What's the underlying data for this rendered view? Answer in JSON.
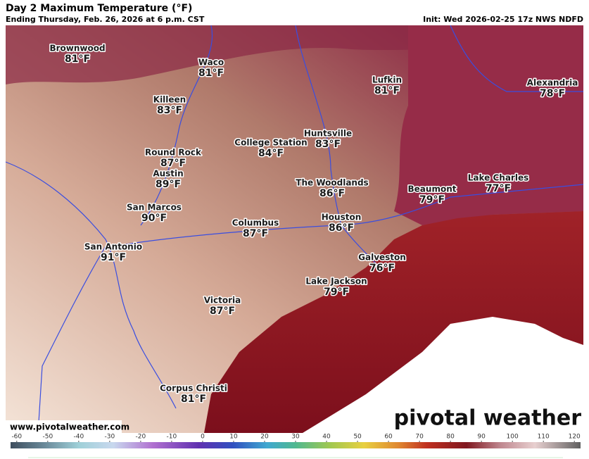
{
  "header": {
    "title": "Day 2 Maximum Temperature (°F)",
    "subtitle": "Ending Thursday, Feb. 26, 2026 at 6 p.m. CST",
    "init": "Init: Wed 2026-02-25 17z NWS NDFD"
  },
  "cities": [
    {
      "name": "Brownwood",
      "temp": "81°F"
    },
    {
      "name": "Waco",
      "temp": "81°F"
    },
    {
      "name": "Killeen",
      "temp": "83°F"
    },
    {
      "name": "Lufkin",
      "temp": "81°F"
    },
    {
      "name": "Alexandria",
      "temp": "78°F"
    },
    {
      "name": "College Station",
      "temp": "84°F"
    },
    {
      "name": "Huntsville",
      "temp": "83°F"
    },
    {
      "name": "Round Rock",
      "temp": "87°F"
    },
    {
      "name": "Austin",
      "temp": "89°F"
    },
    {
      "name": "The Woodlands",
      "temp": "86°F"
    },
    {
      "name": "Beaumont",
      "temp": "79°F"
    },
    {
      "name": "Lake Charles",
      "temp": "77°F"
    },
    {
      "name": "San Marcos",
      "temp": "90°F"
    },
    {
      "name": "Houston",
      "temp": "86°F"
    },
    {
      "name": "Columbus",
      "temp": "87°F"
    },
    {
      "name": "San Antonio",
      "temp": "91°F"
    },
    {
      "name": "Galveston",
      "temp": "76°F"
    },
    {
      "name": "Lake Jackson",
      "temp": "79°F"
    },
    {
      "name": "Victoria",
      "temp": "87°F"
    },
    {
      "name": "Corpus Christi",
      "temp": "81°F"
    }
  ],
  "footer": {
    "website": "www.pivotalweather.com",
    "logo": "pivotal weather"
  },
  "colorbar": {
    "range": [
      -62,
      122
    ],
    "ticks": [
      -60,
      -50,
      -40,
      -30,
      -20,
      -10,
      0,
      10,
      20,
      30,
      40,
      50,
      60,
      70,
      80,
      90,
      100,
      110,
      120
    ]
  }
}
